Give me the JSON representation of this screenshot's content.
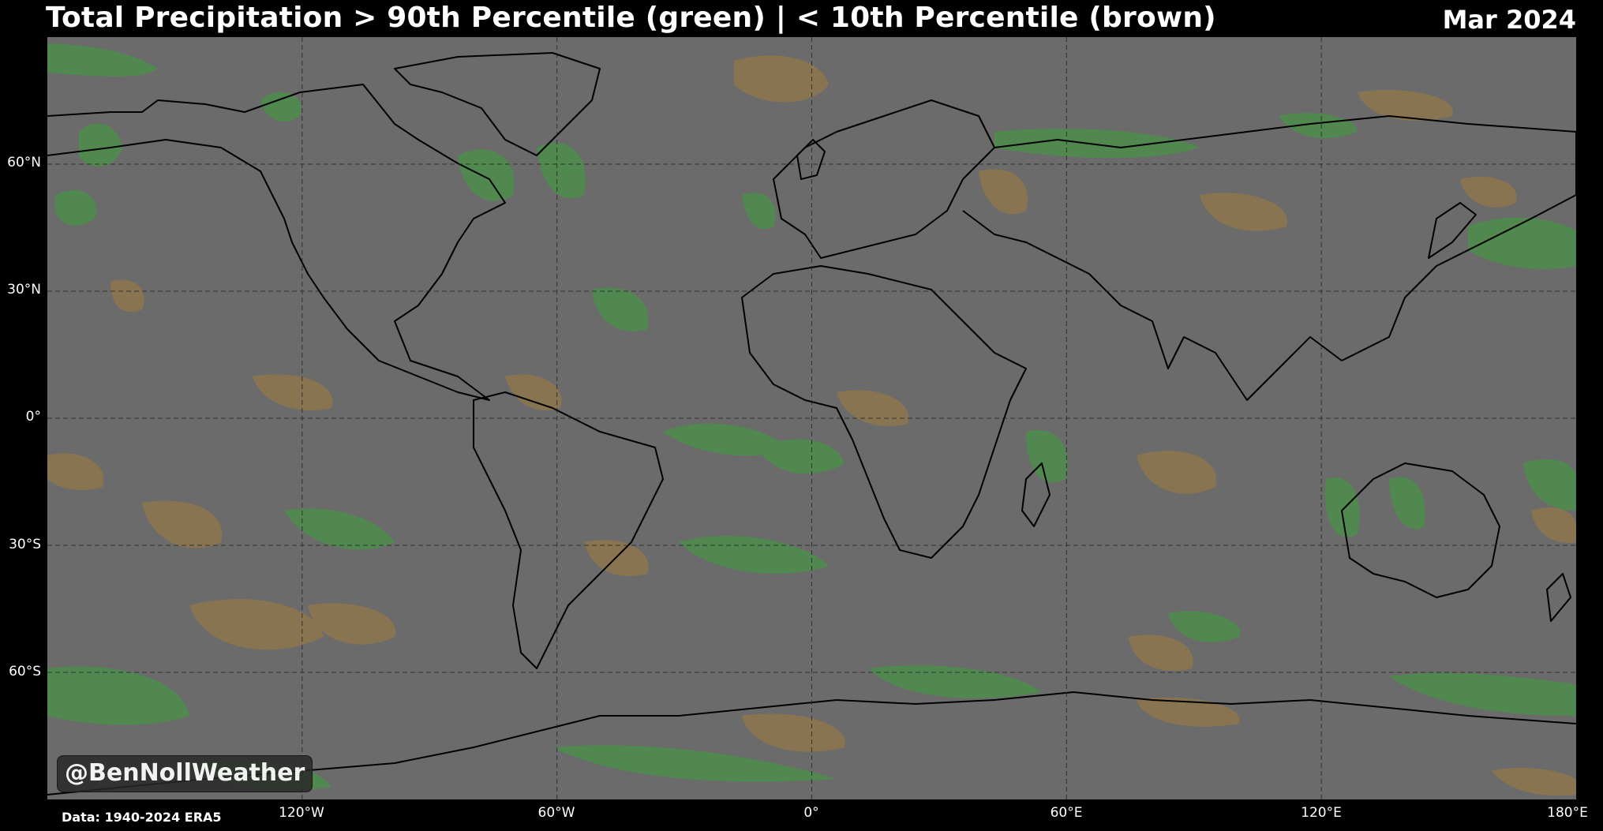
{
  "header": {
    "title": "Total Precipitation > 90th Percentile (green) | < 10th Percentile (brown)",
    "date": "Mar 2024"
  },
  "map": {
    "projection": "plate-carree",
    "extent": {
      "lon": [
        -180,
        180
      ],
      "lat": [
        -90,
        90
      ]
    },
    "background_color": "#6b6b6b",
    "above_90th_color": "#4f8a4f",
    "below_10th_color": "#8a7550",
    "coastline_color": "#000000",
    "lake_color": "#7a8794",
    "gridlines": true,
    "lat_labels": [
      "60°N",
      "30°N",
      "0°",
      "30°S",
      "60°S"
    ],
    "lon_labels": [
      "120°W",
      "60°W",
      "0°",
      "60°E",
      "120°E",
      "180°E"
    ]
  },
  "watermark": "@BenNollWeather",
  "source": "Data: 1940-2024 ERA5"
}
